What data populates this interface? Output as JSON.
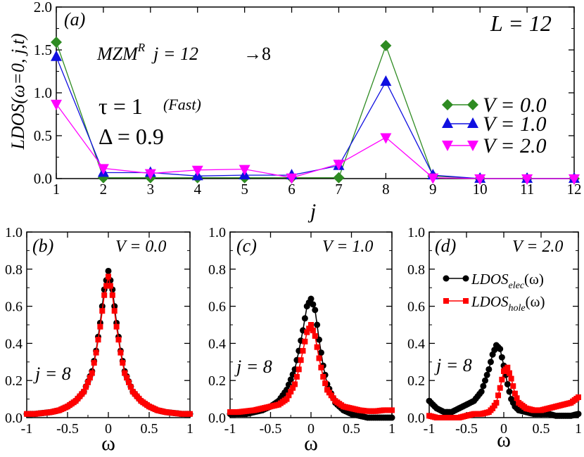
{
  "chart_data": [
    {
      "id": "a",
      "type": "line",
      "panel_label": "(a)",
      "annotation_system": "L = 12",
      "annotation_mzm_main": "MZM",
      "annotation_mzm_sup": "R",
      "annotation_mzm_rest": "j = 12",
      "annotation_mzm_arrow": "→",
      "annotation_mzm_target": "8",
      "annotation_tau_symbol": "τ = 1",
      "annotation_tau_note": "(Fast)",
      "annotation_delta": "Δ = 0.9",
      "xlabel": "j",
      "ylabel": "LDOS(ω=0, j,t)",
      "xlim": [
        1,
        12
      ],
      "ylim": [
        0,
        2.0
      ],
      "xticks": [
        "1",
        "2",
        "3",
        "4",
        "5",
        "6",
        "7",
        "8",
        "9",
        "10",
        "11",
        "12"
      ],
      "yticks": [
        "0.0",
        "0.5",
        "1.0",
        "1.5",
        "2.0"
      ],
      "legend_position": "right",
      "x": [
        1,
        2,
        3,
        4,
        5,
        6,
        7,
        8,
        9,
        10,
        11,
        12
      ],
      "series": [
        {
          "name": "V = 0.0",
          "color": "#2e8b22",
          "marker": "diamond",
          "values": [
            1.59,
            0.01,
            0.01,
            0.01,
            0.01,
            0.01,
            0.01,
            1.55,
            0.03,
            0.0,
            0.0,
            0.0
          ]
        },
        {
          "name": "V = 1.0",
          "color": "#1010e0",
          "marker": "triangle-up",
          "values": [
            1.42,
            0.07,
            0.07,
            0.03,
            0.04,
            0.04,
            0.15,
            1.13,
            0.04,
            0.0,
            0.0,
            0.0
          ]
        },
        {
          "name": "V = 2.0",
          "color": "#ff00ff",
          "marker": "triangle-down",
          "values": [
            0.87,
            0.12,
            0.06,
            0.1,
            0.11,
            0.01,
            0.17,
            0.48,
            0.01,
            0.0,
            0.0,
            0.0
          ]
        }
      ]
    },
    {
      "id": "b",
      "type": "scatter",
      "panel_label": "(b)",
      "annotation_v": "V = 0.0",
      "annotation_site": "j = 8",
      "xlabel": "ω",
      "xlim": [
        -1,
        1
      ],
      "ylim": [
        0,
        1.0
      ],
      "xticks": [
        "-1",
        "-0.5",
        "0",
        "0.5",
        "1"
      ],
      "yticks": [
        "0.0",
        "0.2",
        "0.4",
        "0.6",
        "0.8",
        "1.0"
      ],
      "x": [
        -1.0,
        -0.9,
        -0.8,
        -0.7,
        -0.6,
        -0.5,
        -0.4,
        -0.3,
        -0.2,
        -0.15,
        -0.1,
        -0.05,
        0.0,
        0.05,
        0.1,
        0.15,
        0.2,
        0.3,
        0.4,
        0.5,
        0.6,
        0.7,
        0.8,
        0.9,
        1.0
      ],
      "series": [
        {
          "name": "LDOS_elec(ω)",
          "color": "#000000",
          "marker": "circle",
          "values": [
            0.02,
            0.02,
            0.025,
            0.03,
            0.04,
            0.06,
            0.09,
            0.14,
            0.25,
            0.36,
            0.51,
            0.69,
            0.79,
            0.69,
            0.51,
            0.36,
            0.25,
            0.14,
            0.09,
            0.06,
            0.04,
            0.03,
            0.025,
            0.02,
            0.02
          ]
        },
        {
          "name": "LDOS_hole(ω)",
          "color": "#ff0000",
          "marker": "square",
          "values": [
            0.02,
            0.02,
            0.025,
            0.03,
            0.04,
            0.06,
            0.09,
            0.14,
            0.24,
            0.35,
            0.49,
            0.66,
            0.76,
            0.66,
            0.49,
            0.35,
            0.24,
            0.14,
            0.09,
            0.06,
            0.04,
            0.03,
            0.025,
            0.02,
            0.02
          ]
        }
      ]
    },
    {
      "id": "c",
      "type": "scatter",
      "panel_label": "(c)",
      "annotation_v": "V = 1.0",
      "annotation_site": "j = 8",
      "xlabel": "ω",
      "xlim": [
        -1,
        1
      ],
      "ylim": [
        0,
        1.0
      ],
      "xticks": [
        "-1",
        "-0.5",
        "0",
        "0.5",
        "1"
      ],
      "yticks": [
        "0.0",
        "0.2",
        "0.4",
        "0.6",
        "0.8",
        "1.0"
      ],
      "x": [
        -1.0,
        -0.9,
        -0.8,
        -0.7,
        -0.6,
        -0.5,
        -0.4,
        -0.3,
        -0.2,
        -0.15,
        -0.1,
        -0.05,
        0.0,
        0.05,
        0.1,
        0.15,
        0.2,
        0.3,
        0.4,
        0.5,
        0.6,
        0.7,
        0.8,
        0.9,
        1.0
      ],
      "series": [
        {
          "name": "LDOS_elec(ω)",
          "color": "#000000",
          "marker": "circle",
          "values": [
            0.02,
            0.02,
            0.02,
            0.03,
            0.04,
            0.06,
            0.09,
            0.15,
            0.26,
            0.36,
            0.47,
            0.6,
            0.64,
            0.58,
            0.42,
            0.28,
            0.18,
            0.08,
            0.04,
            0.02,
            0.01,
            0.0,
            0.0,
            0.0,
            0.0
          ]
        },
        {
          "name": "LDOS_hole(ω)",
          "color": "#ff0000",
          "marker": "square",
          "values": [
            0.03,
            0.03,
            0.035,
            0.04,
            0.05,
            0.06,
            0.07,
            0.1,
            0.18,
            0.26,
            0.36,
            0.46,
            0.5,
            0.44,
            0.32,
            0.22,
            0.15,
            0.09,
            0.06,
            0.05,
            0.04,
            0.035,
            0.035,
            0.04,
            0.04
          ]
        }
      ]
    },
    {
      "id": "d",
      "type": "scatter",
      "panel_label": "(d)",
      "annotation_v": "V = 2.0",
      "annotation_site": "j = 8",
      "xlabel": "ω",
      "xlim": [
        -1,
        1
      ],
      "ylim": [
        0,
        1.0
      ],
      "xticks": [
        "-1",
        "-0.5",
        "0",
        "0.5",
        "1"
      ],
      "yticks": [
        "0.0",
        "0.2",
        "0.4",
        "0.6",
        "0.8",
        "1.0"
      ],
      "legend_position": "top-right",
      "legend_elec_main": "LDOS",
      "legend_elec_sub": "elec",
      "legend_elec_arg": "(ω)",
      "legend_hole_main": "LDOS",
      "legend_hole_sub": "hole",
      "legend_hole_arg": "(ω)",
      "x": [
        -1.0,
        -0.9,
        -0.8,
        -0.7,
        -0.6,
        -0.5,
        -0.4,
        -0.3,
        -0.2,
        -0.15,
        -0.1,
        -0.05,
        0.0,
        0.05,
        0.1,
        0.15,
        0.2,
        0.3,
        0.4,
        0.5,
        0.6,
        0.7,
        0.8,
        0.9,
        1.0
      ],
      "series": [
        {
          "name": "LDOS_elec(ω)",
          "color": "#000000",
          "marker": "circle",
          "values": [
            0.09,
            0.05,
            0.03,
            0.03,
            0.05,
            0.07,
            0.09,
            0.14,
            0.26,
            0.34,
            0.39,
            0.37,
            0.28,
            0.18,
            0.1,
            0.06,
            0.04,
            0.03,
            0.02,
            0.02,
            0.02,
            0.01,
            0.01,
            0.01,
            0.02
          ]
        },
        {
          "name": "LDOS_hole(ω)",
          "color": "#ff0000",
          "marker": "square",
          "values": [
            0.01,
            0.0,
            0.0,
            0.0,
            0.0,
            0.01,
            0.02,
            0.02,
            0.03,
            0.05,
            0.08,
            0.16,
            0.25,
            0.27,
            0.21,
            0.13,
            0.08,
            0.05,
            0.04,
            0.04,
            0.05,
            0.06,
            0.07,
            0.08,
            0.11
          ]
        }
      ]
    }
  ]
}
